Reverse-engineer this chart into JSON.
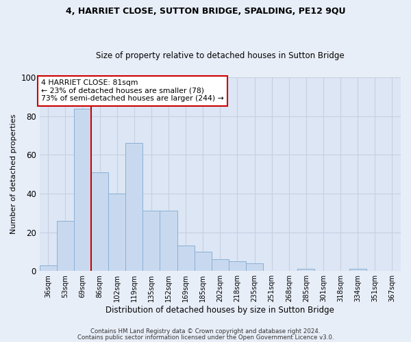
{
  "title1": "4, HARRIET CLOSE, SUTTON BRIDGE, SPALDING, PE12 9QU",
  "title2": "Size of property relative to detached houses in Sutton Bridge",
  "xlabel": "Distribution of detached houses by size in Sutton Bridge",
  "ylabel": "Number of detached properties",
  "categories": [
    "36sqm",
    "53sqm",
    "69sqm",
    "86sqm",
    "102sqm",
    "119sqm",
    "135sqm",
    "152sqm",
    "169sqm",
    "185sqm",
    "202sqm",
    "218sqm",
    "235sqm",
    "251sqm",
    "268sqm",
    "285sqm",
    "301sqm",
    "318sqm",
    "334sqm",
    "351sqm",
    "367sqm"
  ],
  "values": [
    3,
    26,
    84,
    51,
    40,
    66,
    31,
    31,
    13,
    10,
    6,
    5,
    4,
    0,
    0,
    1,
    0,
    0,
    1,
    0,
    0
  ],
  "bar_color": "#c8d9ef",
  "bar_edge_color": "#8aafd4",
  "vline_color": "#cc0000",
  "vline_x": 2.5,
  "annotation_text": "4 HARRIET CLOSE: 81sqm\n← 23% of detached houses are smaller (78)\n73% of semi-detached houses are larger (244) →",
  "annotation_box_color": "#ffffff",
  "annotation_box_edge": "#cc0000",
  "ylim": [
    0,
    100
  ],
  "yticks": [
    0,
    20,
    40,
    60,
    80,
    100
  ],
  "grid_color": "#c8d0e0",
  "bg_color": "#dce6f5",
  "fig_bg_color": "#e8eef8",
  "footnote1": "Contains HM Land Registry data © Crown copyright and database right 2024.",
  "footnote2": "Contains public sector information licensed under the Open Government Licence v3.0.",
  "title1_fontsize": 9,
  "title2_fontsize": 8.5,
  "ylabel_fontsize": 8,
  "xlabel_fontsize": 8.5
}
